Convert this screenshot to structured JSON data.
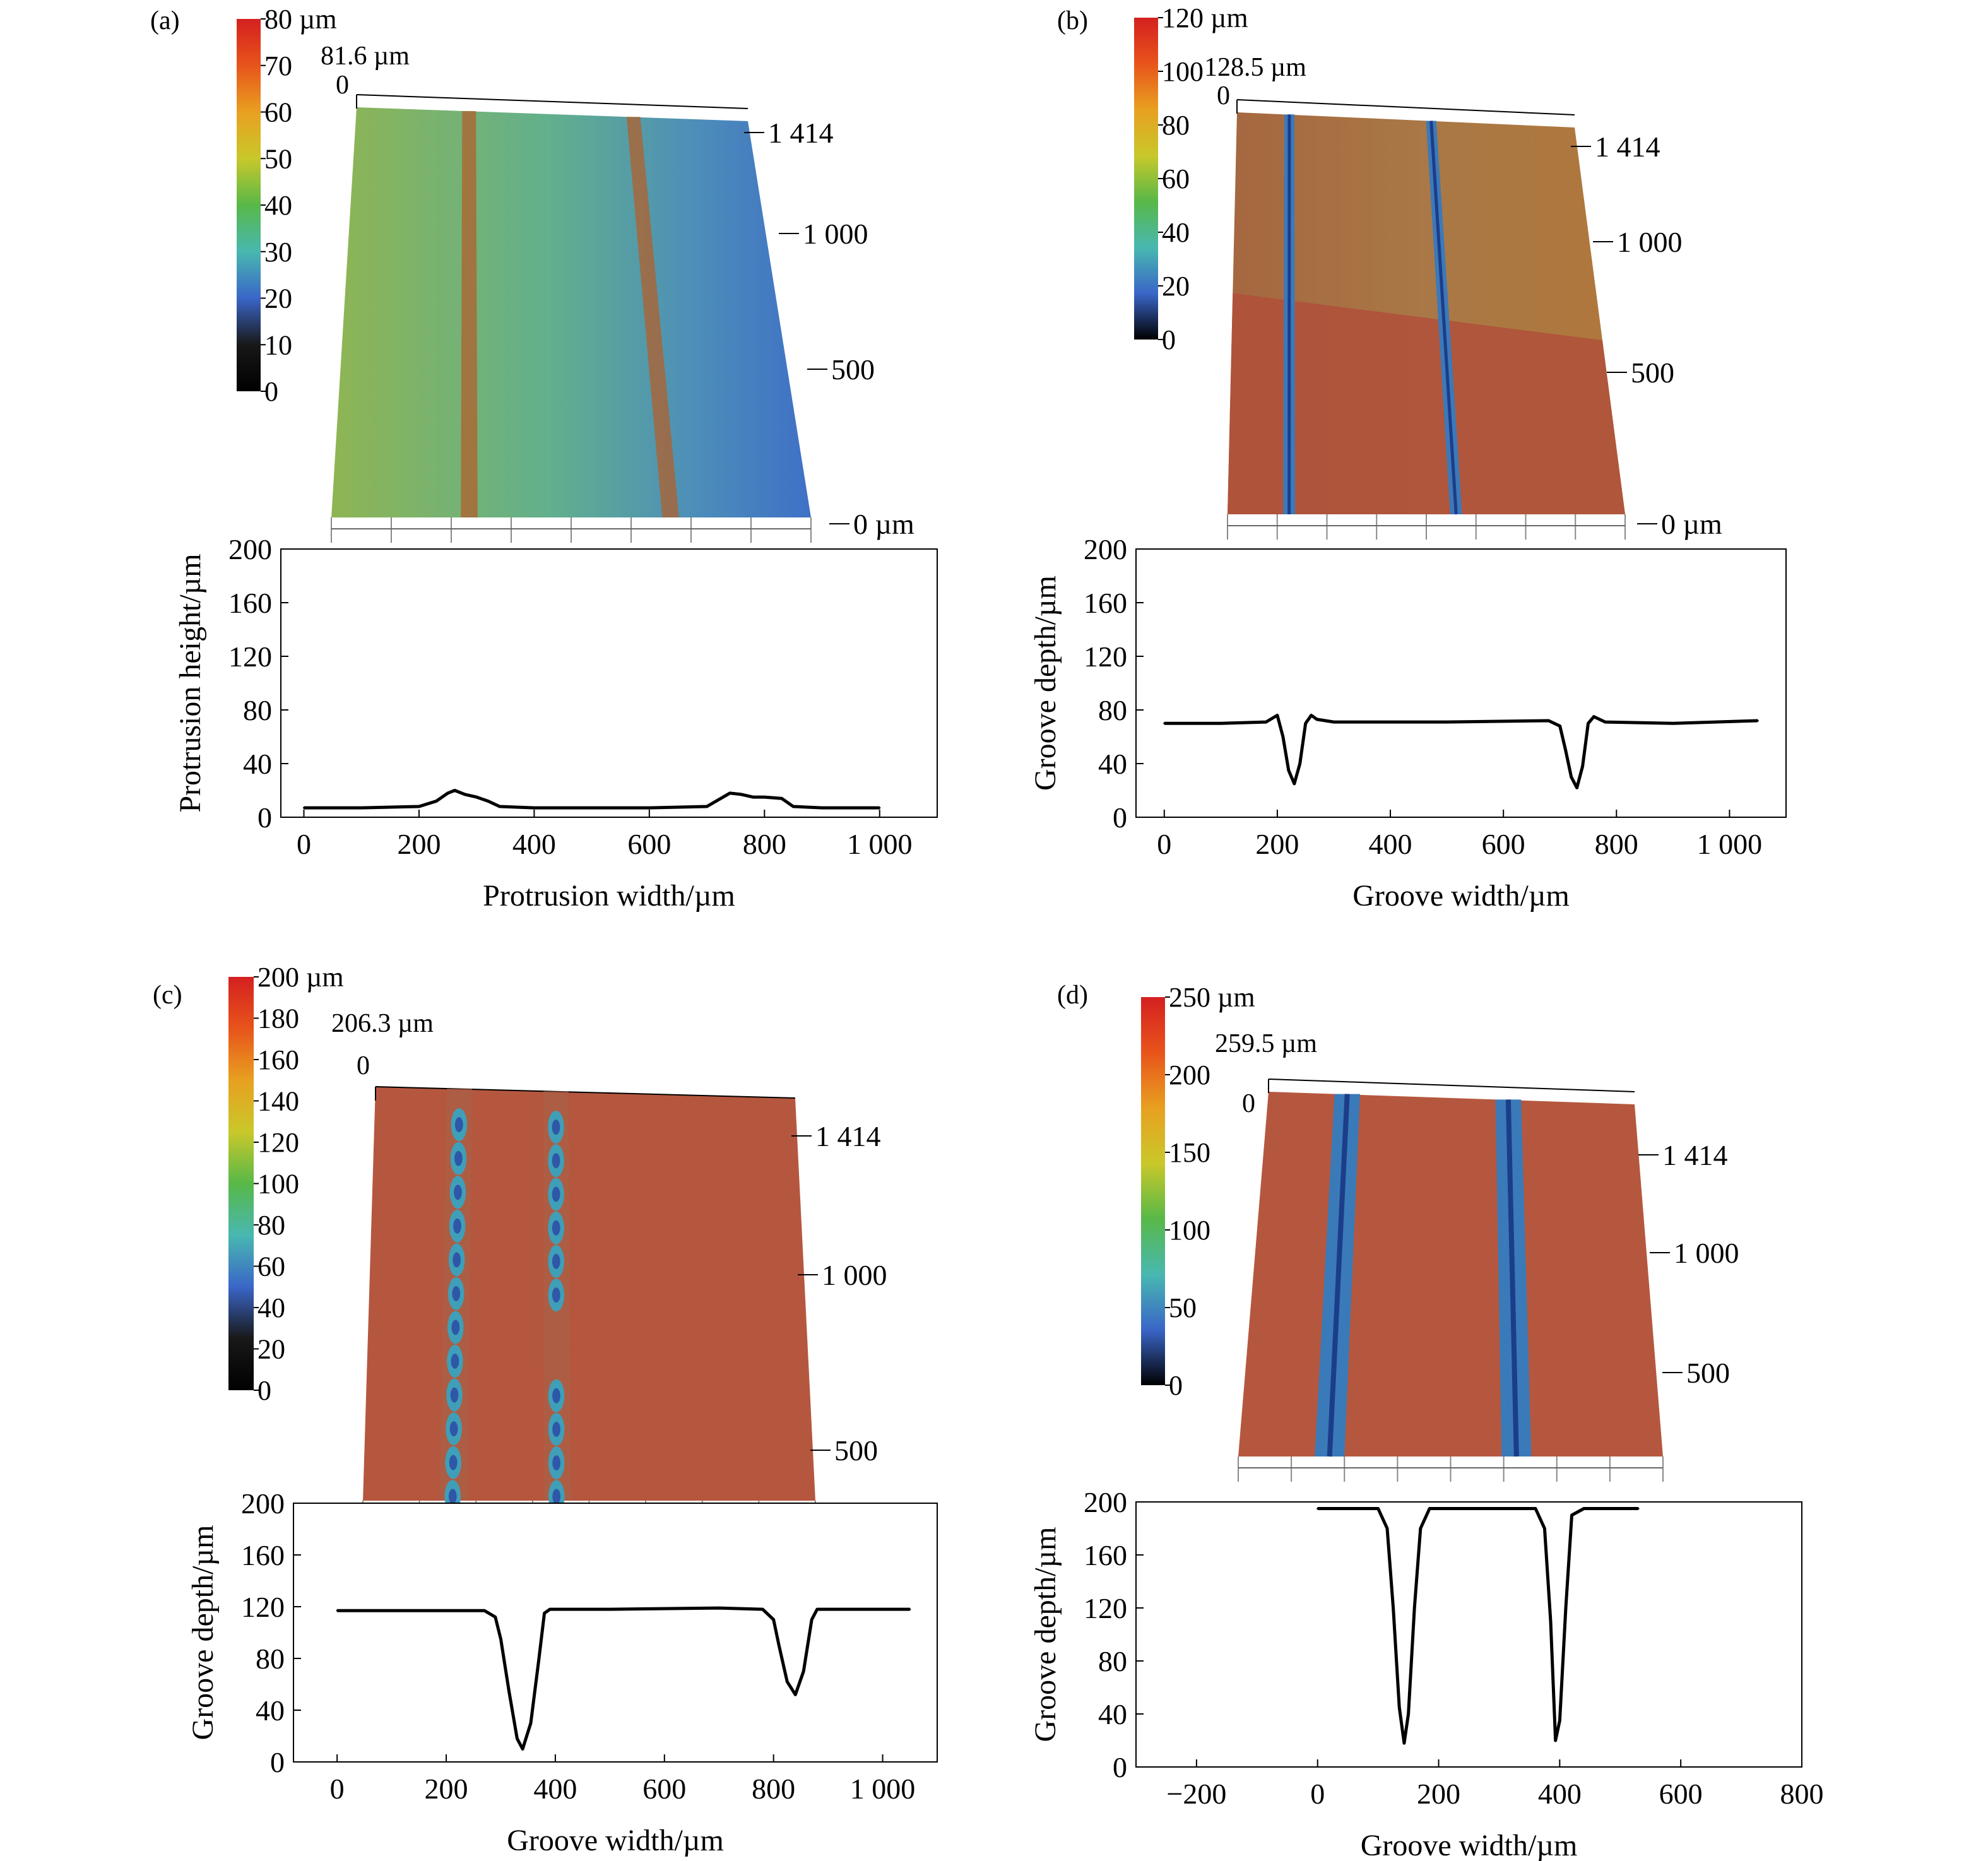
{
  "panels": [
    {
      "id": "a",
      "label": "(a)",
      "colorbar": {
        "ticks": [
          "80 µm",
          "70",
          "60",
          "50",
          "40",
          "30",
          "20",
          "10",
          "0"
        ],
        "stops": [
          "#d42020",
          "#e8541b",
          "#e8a020",
          "#c9c82a",
          "#58b848",
          "#48b8b0",
          "#3a66c8",
          "#181818",
          "#000000"
        ]
      },
      "surface": {
        "max_label": "81.6 µm",
        "zero": "0",
        "y_ticks": [
          "1 414",
          "1 000",
          "500",
          "0 µm"
        ],
        "base_color": "#6fae5b",
        "ridge_color": "#b0602e"
      },
      "chart_data": {
        "type": "line",
        "title": "",
        "xlabel": "Protrusion width/µm",
        "ylabel": "Protrusion height/µm",
        "xlim": [
          -40,
          1100
        ],
        "ylim": [
          0,
          200
        ],
        "xticks": [
          0,
          200,
          400,
          600,
          800,
          1000
        ],
        "xtick_labels": [
          "0",
          "200",
          "400",
          "600",
          "800",
          "1 000"
        ],
        "yticks": [
          0,
          40,
          80,
          120,
          160,
          200
        ],
        "ytick_labels": [
          "0",
          "40",
          "80",
          "120",
          "160",
          "200"
        ],
        "series": [
          {
            "x": [
              0,
              100,
              200,
              230,
              250,
              262,
              280,
              300,
              320,
              340,
              400,
              500,
              600,
              700,
              720,
              740,
              760,
              780,
              800,
              830,
              850,
              900,
              1000
            ],
            "y": [
              7,
              7,
              8,
              12,
              18,
              20,
              17,
              15,
              12,
              8,
              7,
              7,
              7,
              8,
              13,
              18,
              17,
              15,
              15,
              14,
              8,
              7,
              7
            ]
          }
        ]
      }
    },
    {
      "id": "b",
      "label": "(b)",
      "colorbar": {
        "ticks": [
          "120 µm",
          "100",
          "80",
          "60",
          "40",
          "20",
          "0"
        ],
        "stops": [
          "#d42020",
          "#e8541b",
          "#e8a020",
          "#c9c82a",
          "#58b848",
          "#48b8b0",
          "#3a66c8",
          "#000000"
        ]
      },
      "surface": {
        "max_label": "128.5 µm",
        "zero": "0",
        "y_ticks": [
          "1 414",
          "1 000",
          "500",
          "0 µm"
        ],
        "base_color": "#a7743e",
        "ridge_color": "#3d79b8"
      },
      "chart_data": {
        "type": "line",
        "title": "",
        "xlabel": "Groove width/µm",
        "ylabel": "Groove depth/µm",
        "xlim": [
          -50,
          1100
        ],
        "ylim": [
          0,
          200
        ],
        "xticks": [
          0,
          200,
          400,
          600,
          800,
          1000
        ],
        "xtick_labels": [
          "0",
          "200",
          "400",
          "600",
          "800",
          "1 000"
        ],
        "yticks": [
          0,
          40,
          80,
          120,
          160,
          200
        ],
        "ytick_labels": [
          "0",
          "40",
          "80",
          "120",
          "160",
          "200"
        ],
        "series": [
          {
            "x": [
              0,
              100,
              180,
              200,
              210,
              220,
              230,
              240,
              250,
              260,
              270,
              300,
              500,
              680,
              700,
              710,
              720,
              730,
              740,
              750,
              760,
              780,
              900,
              1050
            ],
            "y": [
              70,
              70,
              71,
              76,
              60,
              35,
              25,
              40,
              70,
              76,
              73,
              71,
              71,
              72,
              68,
              50,
              30,
              22,
              38,
              70,
              75,
              71,
              70,
              72
            ]
          }
        ]
      }
    },
    {
      "id": "c",
      "label": "(c)",
      "colorbar": {
        "ticks": [
          "200 µm",
          "180",
          "160",
          "140",
          "120",
          "100",
          "80",
          "60",
          "40",
          "20",
          "0"
        ],
        "stops": [
          "#d42020",
          "#e8541b",
          "#e8a020",
          "#c9c82a",
          "#58b848",
          "#48b8b0",
          "#3a66c8",
          "#181818",
          "#000000"
        ]
      },
      "surface": {
        "max_label": "206.3 µm",
        "zero": "0",
        "y_ticks": [
          "1 414",
          "1 000",
          "500"
        ],
        "base_color": "#b5573e",
        "ridge_color": "#3e8bbf"
      },
      "chart_data": {
        "type": "line",
        "title": "",
        "xlabel": "Groove width/µm",
        "ylabel": "Groove depth/µm",
        "xlim": [
          -80,
          1100
        ],
        "ylim": [
          0,
          200
        ],
        "xticks": [
          0,
          200,
          400,
          600,
          800,
          1000
        ],
        "xtick_labels": [
          "0",
          "200",
          "400",
          "600",
          "800",
          "1 000"
        ],
        "yticks": [
          0,
          40,
          80,
          120,
          160,
          200
        ],
        "ytick_labels": [
          "0",
          "40",
          "80",
          "120",
          "160",
          "200"
        ],
        "series": [
          {
            "x": [
              0,
              200,
              270,
              290,
              300,
              315,
              330,
              340,
              355,
              370,
              380,
              390,
              400,
              500,
              700,
              780,
              800,
              810,
              825,
              840,
              855,
              870,
              880,
              1050
            ],
            "y": [
              117,
              117,
              117,
              112,
              95,
              55,
              18,
              10,
              30,
              80,
              115,
              118,
              118,
              118,
              119,
              118,
              110,
              90,
              62,
              52,
              70,
              110,
              118,
              118
            ]
          }
        ]
      }
    },
    {
      "id": "d",
      "label": "(d)",
      "colorbar": {
        "ticks": [
          "250 µm",
          "200",
          "150",
          "100",
          "50",
          "0"
        ],
        "stops": [
          "#d42020",
          "#e8541b",
          "#e8a020",
          "#c9c82a",
          "#58b848",
          "#48b8b0",
          "#3a66c8",
          "#000000"
        ]
      },
      "surface": {
        "max_label": "259.5 µm",
        "zero": "0",
        "y_ticks": [
          "1 414",
          "1 000",
          "500"
        ],
        "base_color": "#b5573e",
        "ridge_color": "#3a7ab8"
      },
      "chart_data": {
        "type": "line",
        "title": "",
        "xlabel": "Groove width/µm",
        "ylabel": "Groove depth/µm",
        "xlim": [
          -300,
          800
        ],
        "ylim": [
          0,
          200
        ],
        "xticks": [
          -200,
          0,
          200,
          400,
          600,
          800
        ],
        "xtick_labels": [
          "−200",
          "0",
          "200",
          "400",
          "600",
          "800"
        ],
        "yticks": [
          0,
          40,
          80,
          120,
          160,
          200
        ],
        "ytick_labels": [
          "0",
          "40",
          "80",
          "120",
          "160",
          "200"
        ],
        "series": [
          {
            "x": [
              0,
              60,
              100,
              115,
              125,
              135,
              143,
              150,
              160,
              170,
              185,
              200,
              300,
              360,
              375,
              385,
              393,
              400,
              410,
              420,
              440,
              530
            ],
            "y": [
              195,
              195,
              195,
              180,
              120,
              45,
              18,
              40,
              120,
              180,
              195,
              195,
              195,
              195,
              180,
              110,
              20,
              35,
              120,
              190,
              195,
              195
            ]
          }
        ]
      }
    }
  ]
}
